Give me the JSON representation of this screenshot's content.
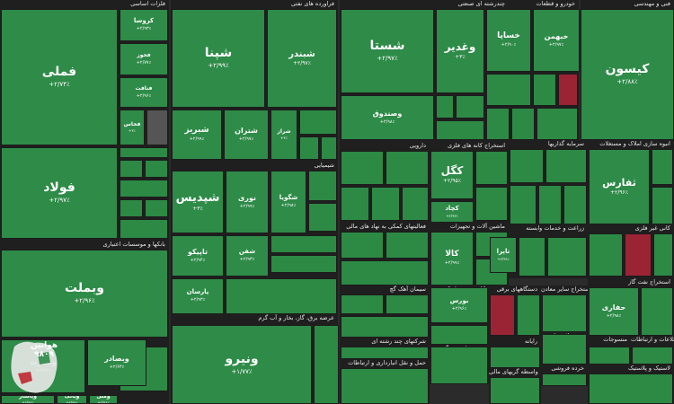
{
  "sectors": [
    {
      "id": "s1",
      "title": "فلزات اساسی"
    },
    {
      "id": "s2",
      "title": "فراورده های نفتی"
    },
    {
      "id": "s3",
      "title": "چندرشته ای صنعتی"
    },
    {
      "id": "s4",
      "title": "خودرو و قطعات"
    },
    {
      "id": "s5",
      "title": "فنی و مهندسی"
    },
    {
      "id": "s6",
      "title": "بانکها و موسسات اعتباری"
    },
    {
      "id": "s7",
      "title": "شیمیایی"
    },
    {
      "id": "s8",
      "title": "دارویی"
    },
    {
      "id": "s9",
      "title": "استخراج کانه های فلزی"
    },
    {
      "id": "s10",
      "title": "سرمایه گذاریها"
    },
    {
      "id": "s11",
      "title": "انبوه سازی املاک و مستغلات"
    },
    {
      "id": "s12",
      "title": "فعالیتهای کمکی به نهاد های مالی"
    },
    {
      "id": "s13",
      "title": "ماشین آلات و تجهیزات"
    },
    {
      "id": "s14",
      "title": "زراعت و خدمات وابسته"
    },
    {
      "id": "s15",
      "title": "کانی غیر فلزی"
    },
    {
      "id": "s16",
      "title": "عرضه برق، گاز، بخار و آب گرم"
    },
    {
      "id": "s17",
      "title": "سیمان آهک گچ"
    },
    {
      "id": "s18",
      "title": "کاشی و سرامیک"
    },
    {
      "id": "s19",
      "title": "دستگاههای برقی"
    },
    {
      "id": "s20",
      "title": "استخراج سایر معادن"
    },
    {
      "id": "s21",
      "title": "استخراج نفت گاز"
    },
    {
      "id": "s22",
      "title": "محصولات فلزی"
    },
    {
      "id": "s23",
      "title": "بیمه و بازنشستگی"
    },
    {
      "id": "s24",
      "title": "رایانه"
    },
    {
      "id": "s25",
      "title": "خرده فروشی"
    },
    {
      "id": "s26",
      "title": "منسوجات"
    },
    {
      "id": "s27",
      "title": "اطلاعات و ارتباطات"
    },
    {
      "id": "s28",
      "title": "شرکتهای چند رشته ای"
    },
    {
      "id": "s29",
      "title": "حمل و نقل انبارداری و ارتباطات"
    },
    {
      "id": "s30",
      "title": "واسطه گریهای مالی"
    },
    {
      "id": "s31",
      "title": "لاستیک و پلاستیک"
    }
  ],
  "tiles": [
    {
      "id": "folami",
      "symbol": "فملی",
      "change": "+۲/۷۴٪"
    },
    {
      "id": "foulad",
      "symbol": "فولاد",
      "change": "+۲/۹۷٪"
    },
    {
      "id": "fousa",
      "symbol": "کروسا",
      "change": "+۲/۹۳٪"
    },
    {
      "id": "fkhouz",
      "symbol": "فخوز",
      "change": "+۲/۷۷٪"
    },
    {
      "id": "fnafat",
      "symbol": "فنافت",
      "change": "+۲/۹۶٪"
    },
    {
      "id": "fkhas",
      "symbol": "فخاس",
      "change": "+۳٪"
    },
    {
      "id": "shpna",
      "symbol": "شپنا",
      "change": "+۲/۹۹٪"
    },
    {
      "id": "shbandar",
      "symbol": "شبندر",
      "change": "+۲/۹۷٪"
    },
    {
      "id": "shbriz",
      "symbol": "شبریز",
      "change": "+۲/۹۹٪"
    },
    {
      "id": "shtran",
      "symbol": "شتران",
      "change": "+۲/۹۷٪"
    },
    {
      "id": "shraz",
      "symbol": "شراز",
      "change": "+۳٪"
    },
    {
      "id": "shasta",
      "symbol": "شستا",
      "change": "+۲/۹۷٪"
    },
    {
      "id": "vghadir",
      "symbol": "وغدیر",
      "change": "+۳٪"
    },
    {
      "id": "vsandoq",
      "symbol": "وصندوق",
      "change": "+۲/۹۸٪"
    },
    {
      "id": "khsapa",
      "symbol": "خساپا",
      "change": "+۲/۹۰٪"
    },
    {
      "id": "khbahman",
      "symbol": "خبهمن",
      "change": "+۲/۹۷٪"
    },
    {
      "id": "kisun",
      "symbol": "کیسون",
      "change": "+۲/۸۸٪"
    },
    {
      "id": "vbmelat",
      "symbol": "وبملت",
      "change": "+۲/۹۶٪"
    },
    {
      "id": "vbsader",
      "symbol": "وبصادر",
      "change": "+۲/۶۳٪"
    },
    {
      "id": "vtejarat",
      "symbol": "وتجارت",
      "change": "+۲/۹۶٪"
    },
    {
      "id": "shpdis",
      "symbol": "شپدیس",
      "change": "+۳٪"
    },
    {
      "id": "nouri",
      "symbol": "نوری",
      "change": "+۲/۹۹٪"
    },
    {
      "id": "shgouya",
      "symbol": "شگویا",
      "change": "+۲/۹۸٪"
    },
    {
      "id": "tapiko",
      "symbol": "تاپیکو",
      "change": "+۲/۹۴٪"
    },
    {
      "id": "shfan",
      "symbol": "شفن",
      "change": "+۲/۹۳٪"
    },
    {
      "id": "parsan",
      "symbol": "پارسان",
      "change": "+۲/۹۳٪"
    },
    {
      "id": "kgol",
      "symbol": "کگل",
      "change": "+۲/۹۵٪"
    },
    {
      "id": "kchad",
      "symbol": "کچاد",
      "change": "+۲/۹۳٪"
    },
    {
      "id": "tfars",
      "symbol": "ثفارس",
      "change": "+۲/۹۶٪"
    },
    {
      "id": "tapra",
      "symbol": "تاپرا",
      "change": "+۲/۹۹٪"
    },
    {
      "id": "kala",
      "symbol": "کالا",
      "change": "+۲/۹۹٪"
    },
    {
      "id": "vniru",
      "symbol": "ونیرو",
      "change": "+۱/۷۷٪"
    },
    {
      "id": "boursa",
      "symbol": "بورس",
      "change": "+۲/۹۶٪"
    },
    {
      "id": "hafari",
      "symbol": "حفاری",
      "change": "+۲/۹۸٪"
    },
    {
      "id": "vpasar",
      "symbol": "وپاسار",
      "change": "+۲/۹۷٪"
    },
    {
      "id": "vbank",
      "symbol": "وبانک",
      "change": "+۲/۹۷٪"
    },
    {
      "id": "vmelal",
      "symbol": "وملل",
      "change": "+۲/۹۶٪"
    }
  ],
  "logo": {
    "line1": "هوانین",
    "line2": "۹۸۰۹"
  }
}
